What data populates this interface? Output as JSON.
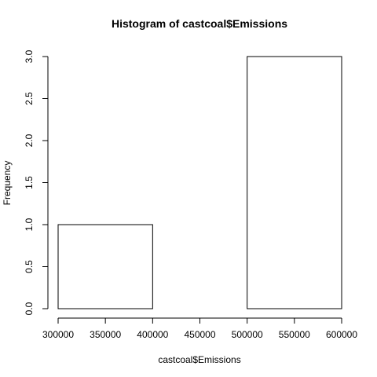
{
  "chart_data": {
    "type": "bar",
    "title": "Histogram of castcoal$Emissions",
    "xlabel": "castcoal$Emissions",
    "ylabel": "Frequency",
    "bins": [
      {
        "x0": 300000,
        "x1": 400000,
        "count": 1
      },
      {
        "x0": 400000,
        "x1": 500000,
        "count": 0
      },
      {
        "x0": 500000,
        "x1": 600000,
        "count": 3
      }
    ],
    "xlim": [
      300000,
      600000
    ],
    "ylim": [
      0,
      3
    ],
    "x_ticks": [
      "300000",
      "350000",
      "400000",
      "450000",
      "500000",
      "550000",
      "600000"
    ],
    "x_tick_values": [
      300000,
      350000,
      400000,
      450000,
      500000,
      550000,
      600000
    ],
    "y_ticks": [
      "0.0",
      "0.5",
      "1.0",
      "1.5",
      "2.0",
      "2.5",
      "3.0"
    ],
    "y_tick_values": [
      0,
      0.5,
      1,
      1.5,
      2,
      2.5,
      3
    ],
    "grid": false,
    "legend": "none",
    "bar_fill": "#ffffff",
    "bar_stroke": "#000000"
  }
}
